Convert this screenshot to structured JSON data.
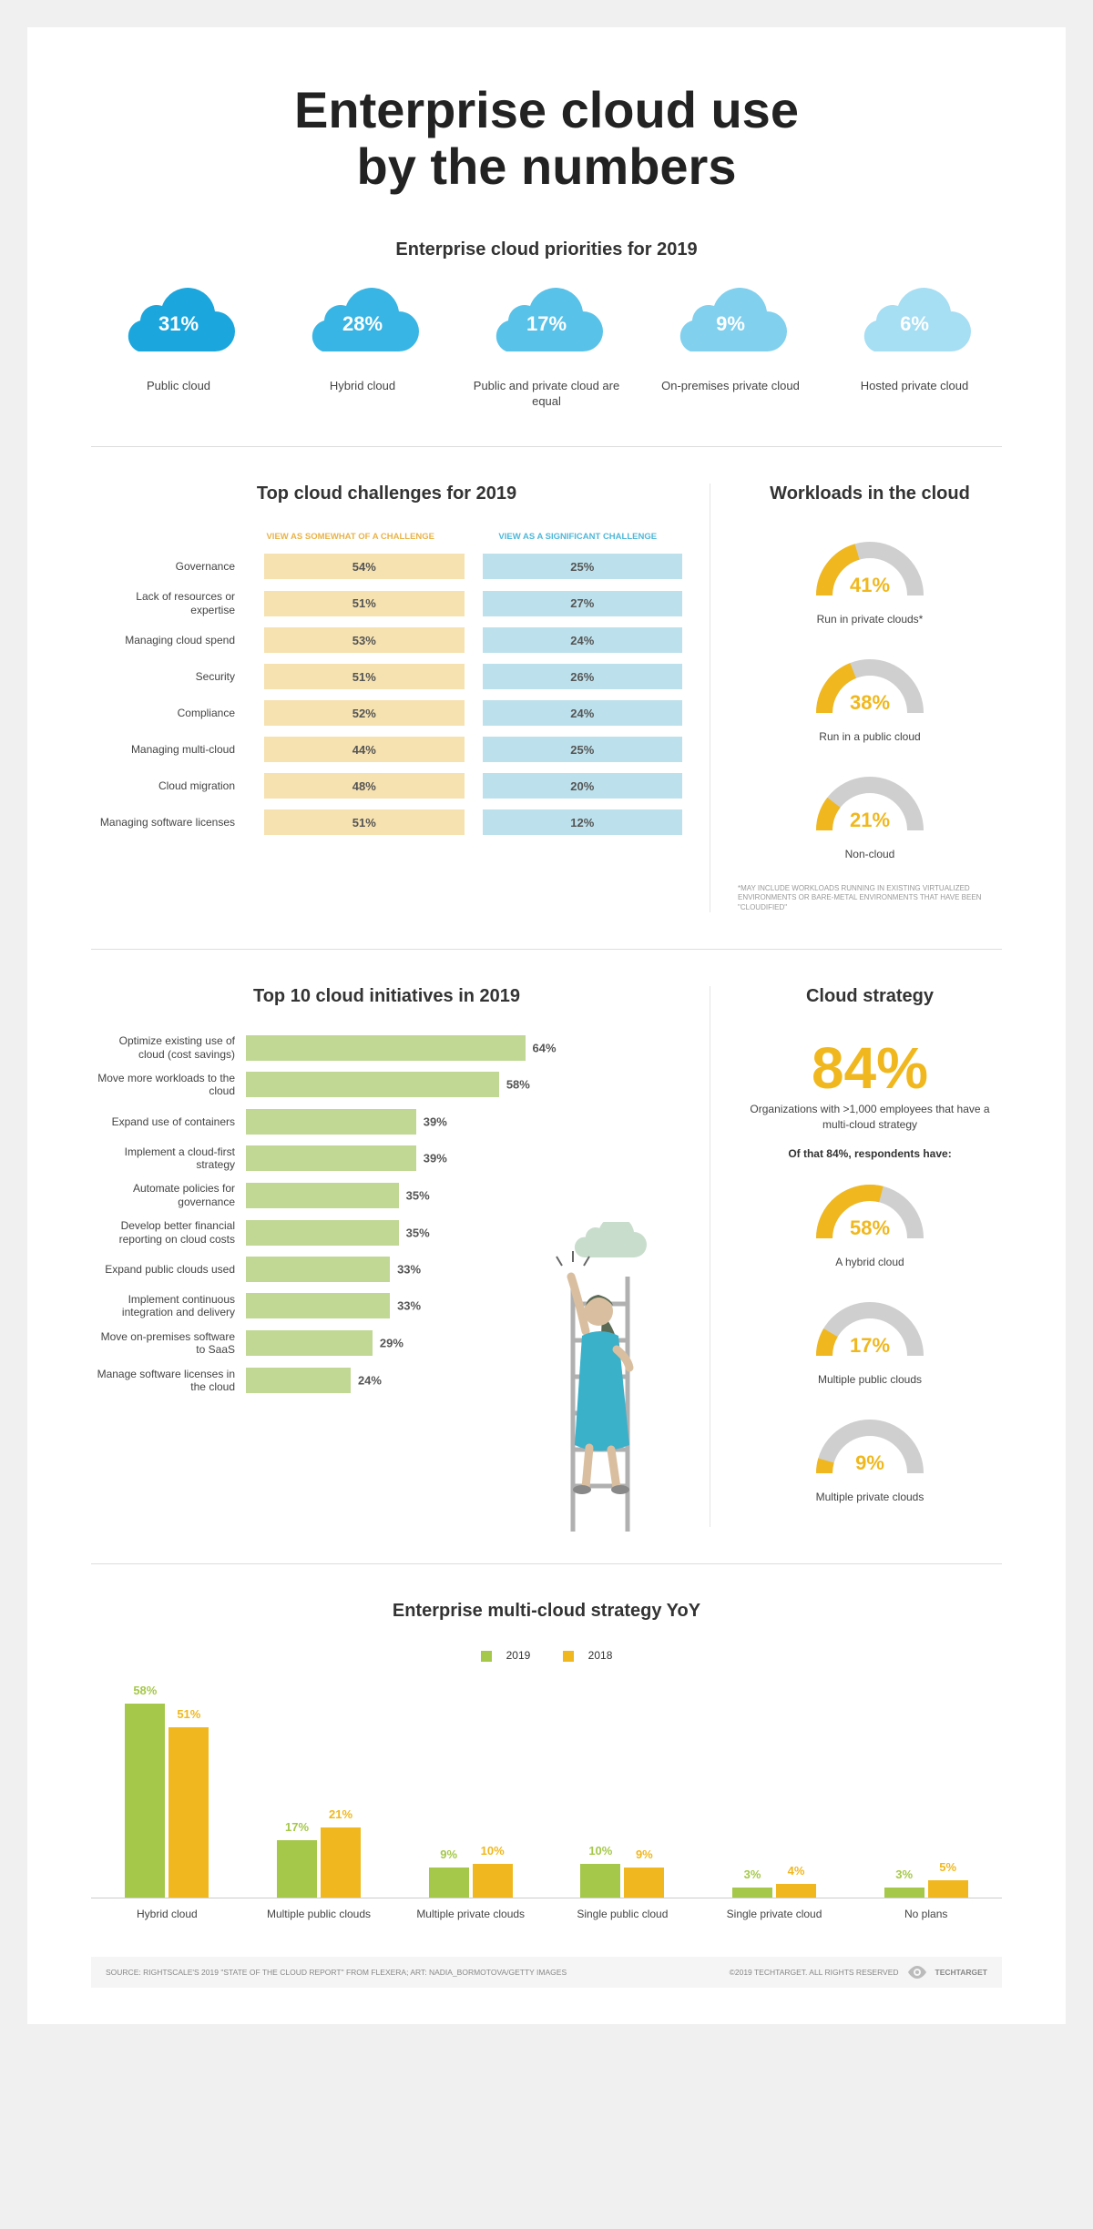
{
  "title_line1": "Enterprise cloud use",
  "title_line2": "by the numbers",
  "priorities": {
    "subtitle": "Enterprise cloud priorities for 2019",
    "items": [
      {
        "pct": "31%",
        "label": "Public cloud",
        "color": "#1ba6dd"
      },
      {
        "pct": "28%",
        "label": "Hybrid cloud",
        "color": "#38b5e4"
      },
      {
        "pct": "17%",
        "label": "Public and private cloud are equal",
        "color": "#59c2e9"
      },
      {
        "pct": "9%",
        "label": "On-premises private cloud",
        "color": "#80d0ee"
      },
      {
        "pct": "6%",
        "label": "Hosted private cloud",
        "color": "#a6def3"
      }
    ]
  },
  "challenges": {
    "subtitle": "Top cloud challenges for 2019",
    "header_somewhat": "VIEW AS SOMEWHAT OF A CHALLENGE",
    "header_significant": "VIEW AS A SIGNIFICANT CHALLENGE",
    "header_somewhat_color": "#e8b348",
    "header_significant_color": "#4fb7d8",
    "bar_somewhat_color": "#f6e2b0",
    "bar_significant_color": "#bde1ec",
    "rows": [
      {
        "label": "Governance",
        "somewhat": "54%",
        "significant": "25%"
      },
      {
        "label": "Lack of resources or expertise",
        "somewhat": "51%",
        "significant": "27%"
      },
      {
        "label": "Managing cloud spend",
        "somewhat": "53%",
        "significant": "24%"
      },
      {
        "label": "Security",
        "somewhat": "51%",
        "significant": "26%"
      },
      {
        "label": "Compliance",
        "somewhat": "52%",
        "significant": "24%"
      },
      {
        "label": "Managing multi-cloud",
        "somewhat": "44%",
        "significant": "25%"
      },
      {
        "label": "Cloud migration",
        "somewhat": "48%",
        "significant": "20%"
      },
      {
        "label": "Managing software licenses",
        "somewhat": "51%",
        "significant": "12%"
      }
    ]
  },
  "workloads": {
    "subtitle": "Workloads in the cloud",
    "gauge_fill": "#f0b81e",
    "gauge_track": "#cfcfcf",
    "items": [
      {
        "pct": 41,
        "pct_text": "41%",
        "label": "Run in private clouds*"
      },
      {
        "pct": 38,
        "pct_text": "38%",
        "label": "Run in a public cloud"
      },
      {
        "pct": 21,
        "pct_text": "21%",
        "label": "Non-cloud"
      }
    ],
    "note": "*May include workloads running in existing virtualized environments or bare-metal environments that have been \"cloudified\""
  },
  "initiatives": {
    "subtitle": "Top 10 cloud initiatives in 2019",
    "bar_color": "#c0d894",
    "max_pct": 100,
    "rows": [
      {
        "label": "Optimize existing use of cloud (cost savings)",
        "pct": 64,
        "pct_text": "64%"
      },
      {
        "label": "Move more workloads to the cloud",
        "pct": 58,
        "pct_text": "58%"
      },
      {
        "label": "Expand use of containers",
        "pct": 39,
        "pct_text": "39%"
      },
      {
        "label": "Implement a cloud-first strategy",
        "pct": 39,
        "pct_text": "39%"
      },
      {
        "label": "Automate policies for governance",
        "pct": 35,
        "pct_text": "35%"
      },
      {
        "label": "Develop better financial reporting on cloud costs",
        "pct": 35,
        "pct_text": "35%"
      },
      {
        "label": "Expand public clouds used",
        "pct": 33,
        "pct_text": "33%"
      },
      {
        "label": "Implement continuous integration and delivery",
        "pct": 33,
        "pct_text": "33%"
      },
      {
        "label": "Move on-premises software to SaaS",
        "pct": 29,
        "pct_text": "29%"
      },
      {
        "label": "Manage software licenses in the cloud",
        "pct": 24,
        "pct_text": "24%"
      }
    ]
  },
  "strategy": {
    "subtitle": "Cloud strategy",
    "big_pct": "84%",
    "big_color": "#f0b81e",
    "big_desc": "Organizations with >1,000 employees that have a multi-cloud strategy",
    "sub_desc": "Of that 84%, respondents have:",
    "gauge_fill": "#f0b81e",
    "gauge_track": "#cfcfcf",
    "items": [
      {
        "pct": 58,
        "pct_text": "58%",
        "label": "A hybrid cloud"
      },
      {
        "pct": 17,
        "pct_text": "17%",
        "label": "Multiple public clouds"
      },
      {
        "pct": 9,
        "pct_text": "9%",
        "label": "Multiple private clouds"
      }
    ]
  },
  "yoy": {
    "subtitle": "Enterprise multi-cloud strategy YoY",
    "legend_2019": "2019",
    "legend_2018": "2018",
    "color_2019": "#a5c84a",
    "color_2018": "#f0b81e",
    "max_pct": 60,
    "groups": [
      {
        "label": "Hybrid cloud",
        "y2019": 58,
        "y2018": 51,
        "y2019_text": "58%",
        "y2018_text": "51%"
      },
      {
        "label": "Multiple public clouds",
        "y2019": 17,
        "y2018": 21,
        "y2019_text": "17%",
        "y2018_text": "21%"
      },
      {
        "label": "Multiple private clouds",
        "y2019": 9,
        "y2018": 10,
        "y2019_text": "9%",
        "y2018_text": "10%"
      },
      {
        "label": "Single public cloud",
        "y2019": 10,
        "y2018": 9,
        "y2019_text": "10%",
        "y2018_text": "9%"
      },
      {
        "label": "Single private cloud",
        "y2019": 3,
        "y2018": 4,
        "y2019_text": "3%",
        "y2018_text": "4%"
      },
      {
        "label": "No plans",
        "y2019": 3,
        "y2018": 5,
        "y2019_text": "3%",
        "y2018_text": "5%"
      }
    ]
  },
  "footer": {
    "source": "Source: Rightscale's 2019 \"State of the Cloud Report\" from Flexera; Art: Nadia_Bormotova/Getty Images",
    "copyright": "©2019 TechTarget. All rights reserved",
    "brand": "TechTarget"
  },
  "illustration": {
    "cloud_colors": [
      "#b7d5b8",
      "#c9ddcd"
    ],
    "person_dress": "#3bb0c9",
    "person_hair": "#5a6a55",
    "person_skin": "#d9bfa0",
    "ladder_color": "#b0b0b0"
  }
}
